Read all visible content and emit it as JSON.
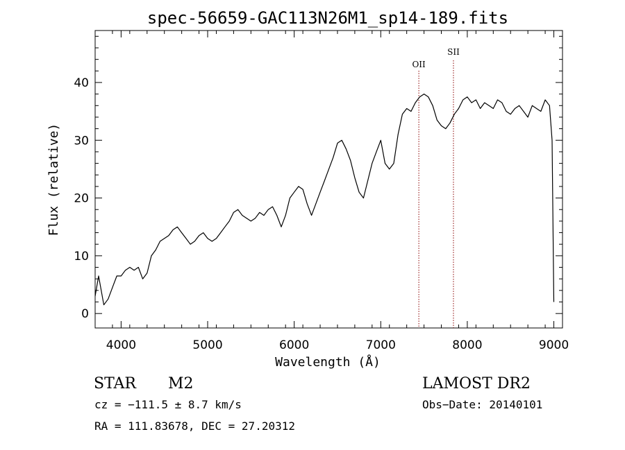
{
  "chart_data": {
    "type": "line",
    "title": "spec-56659-GAC113N26M1_sp14-189.fits",
    "xlabel": "Wavelength (Å)",
    "ylabel": "Flux (relative)",
    "xlim": [
      3700,
      9100
    ],
    "ylim": [
      -2.5,
      49
    ],
    "xticks": [
      4000,
      5000,
      6000,
      7000,
      8000,
      9000
    ],
    "yticks": [
      0,
      10,
      20,
      30,
      40
    ],
    "line_color": "#000000",
    "marker_color": "#8b0000",
    "lines": [
      {
        "name": "OII",
        "wavelength": 7440
      },
      {
        "name": "SII",
        "wavelength": 7840
      }
    ],
    "series": [
      {
        "values": [
          [
            3700,
            3.0
          ],
          [
            3740,
            6.5
          ],
          [
            3800,
            1.5
          ],
          [
            3850,
            2.5
          ],
          [
            3900,
            4.5
          ],
          [
            3950,
            6.5
          ],
          [
            4000,
            6.5
          ],
          [
            4050,
            7.5
          ],
          [
            4100,
            8.0
          ],
          [
            4150,
            7.5
          ],
          [
            4200,
            8.0
          ],
          [
            4250,
            6.0
          ],
          [
            4300,
            7.0
          ],
          [
            4350,
            10.0
          ],
          [
            4400,
            11.0
          ],
          [
            4450,
            12.5
          ],
          [
            4500,
            13.0
          ],
          [
            4550,
            13.5
          ],
          [
            4600,
            14.5
          ],
          [
            4650,
            15.0
          ],
          [
            4700,
            14.0
          ],
          [
            4750,
            13.0
          ],
          [
            4800,
            12.0
          ],
          [
            4850,
            12.5
          ],
          [
            4900,
            13.5
          ],
          [
            4950,
            14.0
          ],
          [
            5000,
            13.0
          ],
          [
            5050,
            12.5
          ],
          [
            5100,
            13.0
          ],
          [
            5150,
            14.0
          ],
          [
            5200,
            15.0
          ],
          [
            5250,
            16.0
          ],
          [
            5300,
            17.5
          ],
          [
            5350,
            18.0
          ],
          [
            5400,
            17.0
          ],
          [
            5450,
            16.5
          ],
          [
            5500,
            16.0
          ],
          [
            5550,
            16.5
          ],
          [
            5600,
            17.5
          ],
          [
            5650,
            17.0
          ],
          [
            5700,
            18.0
          ],
          [
            5750,
            18.5
          ],
          [
            5800,
            17.0
          ],
          [
            5850,
            15.0
          ],
          [
            5900,
            17.0
          ],
          [
            5950,
            20.0
          ],
          [
            6000,
            21.0
          ],
          [
            6050,
            22.0
          ],
          [
            6100,
            21.5
          ],
          [
            6150,
            19.0
          ],
          [
            6200,
            17.0
          ],
          [
            6250,
            19.0
          ],
          [
            6300,
            21.0
          ],
          [
            6350,
            23.0
          ],
          [
            6400,
            25.0
          ],
          [
            6450,
            27.0
          ],
          [
            6500,
            29.5
          ],
          [
            6550,
            30.0
          ],
          [
            6600,
            28.5
          ],
          [
            6650,
            26.5
          ],
          [
            6700,
            23.5
          ],
          [
            6750,
            21.0
          ],
          [
            6800,
            20.0
          ],
          [
            6850,
            23.0
          ],
          [
            6900,
            26.0
          ],
          [
            6950,
            28.0
          ],
          [
            7000,
            30.0
          ],
          [
            7050,
            26.0
          ],
          [
            7100,
            25.0
          ],
          [
            7150,
            26.0
          ],
          [
            7200,
            31.0
          ],
          [
            7250,
            34.5
          ],
          [
            7300,
            35.5
          ],
          [
            7350,
            35.0
          ],
          [
            7400,
            36.5
          ],
          [
            7450,
            37.5
          ],
          [
            7500,
            38.0
          ],
          [
            7550,
            37.5
          ],
          [
            7600,
            36.0
          ],
          [
            7650,
            33.5
          ],
          [
            7700,
            32.5
          ],
          [
            7750,
            32.0
          ],
          [
            7800,
            33.0
          ],
          [
            7850,
            34.5
          ],
          [
            7900,
            35.5
          ],
          [
            7950,
            37.0
          ],
          [
            8000,
            37.5
          ],
          [
            8050,
            36.5
          ],
          [
            8100,
            37.0
          ],
          [
            8150,
            35.5
          ],
          [
            8200,
            36.5
          ],
          [
            8250,
            36.0
          ],
          [
            8300,
            35.5
          ],
          [
            8350,
            37.0
          ],
          [
            8400,
            36.5
          ],
          [
            8450,
            35.0
          ],
          [
            8500,
            34.5
          ],
          [
            8550,
            35.5
          ],
          [
            8600,
            36.0
          ],
          [
            8650,
            35.0
          ],
          [
            8700,
            34.0
          ],
          [
            8750,
            36.0
          ],
          [
            8800,
            35.5
          ],
          [
            8850,
            35.0
          ],
          [
            8900,
            37.0
          ],
          [
            8950,
            36.0
          ],
          [
            8980,
            30.0
          ],
          [
            9000,
            2.0
          ]
        ]
      }
    ]
  },
  "info": {
    "object_class": "STAR",
    "subclass": "M2",
    "survey": "LAMOST DR2",
    "cz": "cz = −111.5 ± 8.7 km/s",
    "obs_date": "Obs−Date: 20140101",
    "coords": "RA = 111.83678, DEC =  27.20312"
  }
}
